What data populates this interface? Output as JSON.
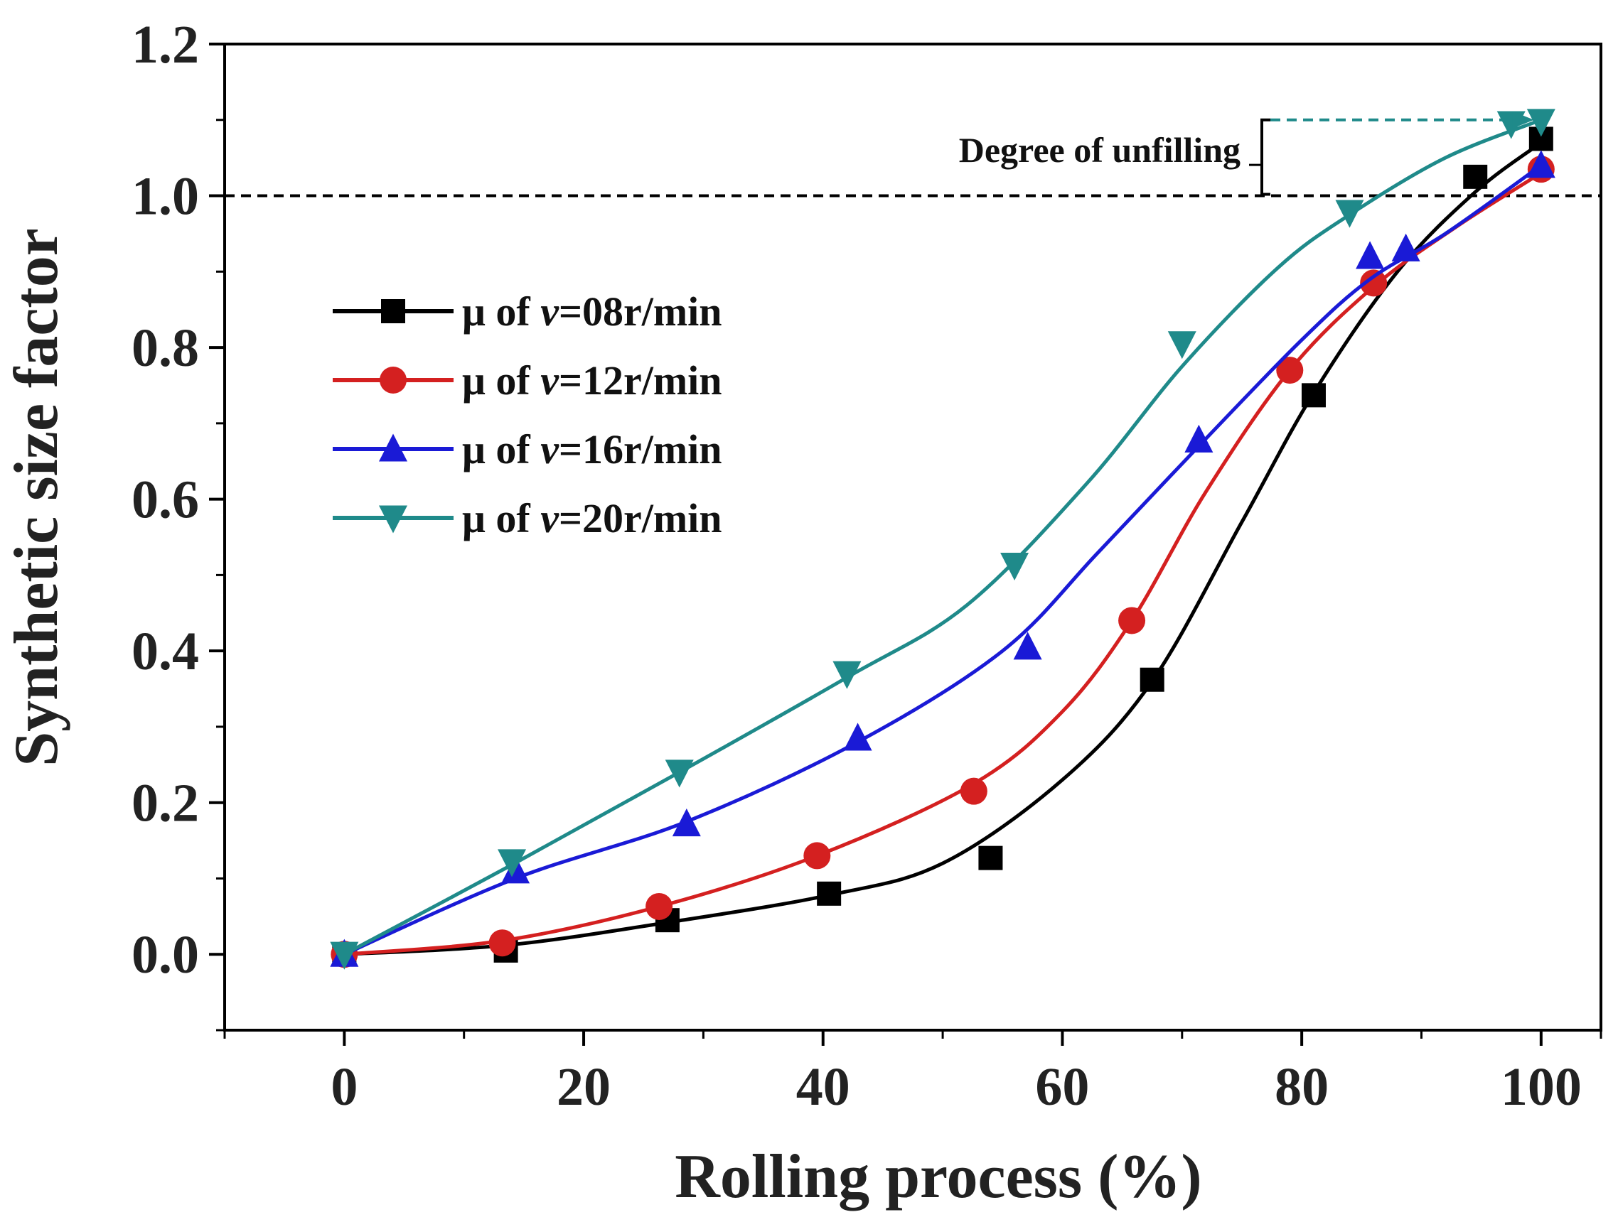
{
  "chart_data": {
    "type": "line",
    "title": "",
    "xlabel": "Rolling process (%)",
    "ylabel": "Synthetic size factor",
    "xlim": [
      -10,
      105
    ],
    "ylim": [
      -0.1,
      1.2
    ],
    "xticks": [
      "0",
      "20",
      "40",
      "60",
      "80",
      "100"
    ],
    "yticks": [
      "0.0",
      "0.2",
      "0.4",
      "0.6",
      "0.8",
      "1.0",
      "1.2"
    ],
    "xtick_values": [
      0,
      20,
      40,
      60,
      80,
      100
    ],
    "ytick_values": [
      0.0,
      0.2,
      0.4,
      0.6,
      0.8,
      1.0,
      1.2
    ],
    "reference_line": {
      "y": 1.0,
      "style": "dashed",
      "color": "#000000"
    },
    "annotation": {
      "text": "Degree of unfilling",
      "from_y": 1.0,
      "to_y": 1.1,
      "arrow_color": "#1f8a8a"
    },
    "legend": {
      "position": "upper-left"
    },
    "series": [
      {
        "name": "08",
        "label": {
          "prefix": "μ of ",
          "var": "v",
          "suffix": "=08r/min"
        },
        "color": "#000000",
        "marker": "square",
        "markers_x": [
          0,
          13.5,
          27,
          40.5,
          54,
          67.5,
          81,
          94.5,
          100
        ],
        "markers_y": [
          0.0,
          0.005,
          0.045,
          0.08,
          0.127,
          0.362,
          0.737,
          1.025,
          1.075
        ],
        "curve_x": [
          0,
          13.5,
          27,
          40.5,
          50,
          60,
          67.5,
          75,
          81,
          88,
          94.5,
          100
        ],
        "curve_y": [
          0.0,
          0.012,
          0.042,
          0.078,
          0.12,
          0.23,
          0.36,
          0.57,
          0.74,
          0.9,
          1.005,
          1.07
        ]
      },
      {
        "name": "12",
        "label": {
          "prefix": "μ of ",
          "var": "v",
          "suffix": "=12r/min"
        },
        "color": "#d42020",
        "marker": "circle",
        "markers_x": [
          0,
          13.2,
          26.3,
          39.5,
          52.6,
          65.8,
          79,
          86,
          100
        ],
        "markers_y": [
          0.0,
          0.015,
          0.063,
          0.13,
          0.215,
          0.44,
          0.77,
          0.885,
          1.035
        ],
        "curve_x": [
          0,
          13.2,
          26.3,
          39.5,
          52.6,
          60,
          65.8,
          72,
          79,
          86,
          93,
          100
        ],
        "curve_y": [
          0.0,
          0.018,
          0.063,
          0.13,
          0.225,
          0.32,
          0.44,
          0.61,
          0.77,
          0.88,
          0.96,
          1.03
        ]
      },
      {
        "name": "16",
        "label": {
          "prefix": "μ of ",
          "var": "v",
          "suffix": "=16r/min"
        },
        "color": "#1a1ad6",
        "marker": "triangle-up",
        "markers_x": [
          0,
          14.3,
          28.6,
          42.9,
          57.1,
          71.4,
          85.7,
          88.7,
          100
        ],
        "markers_y": [
          0.0,
          0.11,
          0.172,
          0.285,
          0.405,
          0.678,
          0.92,
          0.93,
          1.04
        ],
        "curve_x": [
          0,
          14.3,
          28.6,
          42.9,
          55,
          63,
          71.4,
          80,
          85.7,
          92,
          100
        ],
        "curve_y": [
          0.0,
          0.1,
          0.175,
          0.28,
          0.4,
          0.53,
          0.67,
          0.81,
          0.89,
          0.95,
          1.04
        ]
      },
      {
        "name": "20",
        "label": {
          "prefix": "μ of ",
          "var": "v",
          "suffix": "=20r/min"
        },
        "color": "#1f8a8a",
        "marker": "triangle-down",
        "markers_x": [
          0,
          14,
          28,
          42,
          56,
          70,
          84,
          97.5,
          100
        ],
        "markers_y": [
          0.0,
          0.122,
          0.24,
          0.37,
          0.513,
          0.805,
          0.978,
          1.095,
          1.098
        ],
        "curve_x": [
          0,
          14,
          28,
          42,
          52,
          62,
          70,
          78,
          84,
          92,
          100
        ],
        "curve_y": [
          0.0,
          0.118,
          0.24,
          0.365,
          0.46,
          0.62,
          0.775,
          0.905,
          0.975,
          1.05,
          1.1
        ]
      }
    ]
  }
}
